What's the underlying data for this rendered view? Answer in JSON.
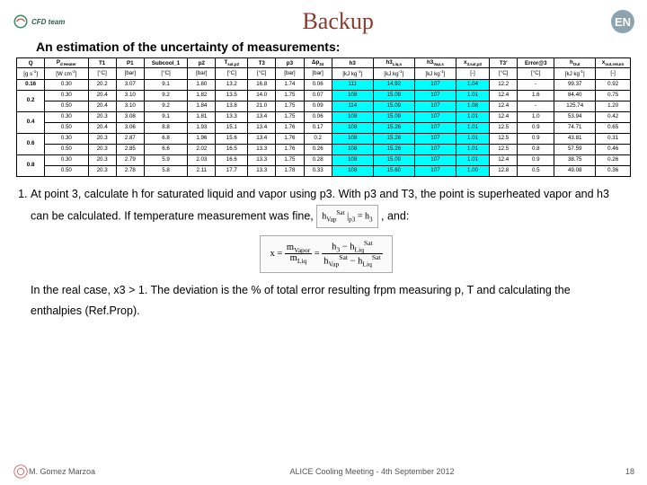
{
  "header": {
    "logo_text": "CFD team",
    "title": "Backup",
    "right_badge": "EN"
  },
  "subtitle": "An estimation of the uncertainty of measurements:",
  "table": {
    "head1": [
      "Q",
      "P<sub>d Heater</sub>",
      "T1",
      "P1",
      "Subcool_1",
      "p2",
      "T<sub>sat,p2</sub>",
      "T3",
      "p3",
      "Δp<sub>34</sub>",
      "h3",
      "h3<sub>Liq,s</sub>",
      "h3<sub>Vap,s</sub>",
      "x<sub>3,sat,p3</sub>",
      "T3'",
      "Error@3",
      "h<sub>Out</sub>",
      "x<sub>out,return</sub>"
    ],
    "head2": [
      "[g s<sup>-1</sup>]",
      "[W cm<sup>-2</sup>]",
      "[°C]",
      "[bar]",
      "[°C]",
      "[bar]",
      "[°C]",
      "[°C]",
      "[bar]",
      "[bar]",
      "[kJ kg<sup>-1</sup>]",
      "[kJ kg<sup>-1</sup>]",
      "[kJ kg<sup>-1</sup>]",
      "[-]",
      "[°C]",
      "[°C]",
      "[kJ kg<sup>-1</sup>]",
      "[-]"
    ],
    "left_groups": [
      "0.16",
      "0.2",
      "0.4",
      "0.6",
      "0.8"
    ],
    "rows": [
      [
        "0.30",
        "20.2",
        "3.07",
        "9.1",
        "1.80",
        "13.2",
        "16.8",
        "1.74",
        "0.06",
        "111",
        "14.92",
        "107",
        "1.04",
        "12.2",
        "-",
        "99.37",
        "0.92"
      ],
      [
        "0.30",
        "20.4",
        "3.10",
        "9.2",
        "1.82",
        "13.5",
        "14.0",
        "1.75",
        "0.07",
        "108",
        "15.09",
        "107",
        "1.01",
        "12.4",
        "1.6",
        "84.40",
        "0.75"
      ],
      [
        "0.50",
        "20.4",
        "3.10",
        "9.2",
        "1.84",
        "13.8",
        "21.0",
        "1.75",
        "0.09",
        "114",
        "15.09",
        "107",
        "1.08",
        "12.4",
        "-",
        "125.74",
        "1.20"
      ],
      [
        "0.30",
        "20.3",
        "3.08",
        "9.1",
        "1.81",
        "13.3",
        "13.4",
        "1.75",
        "0.06",
        "108",
        "15.09",
        "107",
        "1.01",
        "12.4",
        "1.0",
        "53.94",
        "0.42"
      ],
      [
        "0.50",
        "20.4",
        "3.06",
        "8.8",
        "1.93",
        "15.1",
        "13.4",
        "1.76",
        "0.17",
        "108",
        "15.26",
        "107",
        "1.01",
        "12.5",
        "0.9",
        "74.71",
        "0.65"
      ],
      [
        "0.30",
        "20.3",
        "2.87",
        "6.8",
        "1.96",
        "15.6",
        "13.4",
        "1.76",
        "0.2",
        "108",
        "15.26",
        "107",
        "1.01",
        "12.5",
        "0.9",
        "43.81",
        "0.31"
      ],
      [
        "0.50",
        "20.3",
        "2.85",
        "6.6",
        "2.02",
        "16.5",
        "13.3",
        "1.76",
        "0.26",
        "108",
        "15.26",
        "107",
        "1.01",
        "12.5",
        "0.8",
        "57.59",
        "0.46"
      ],
      [
        "0.30",
        "20.3",
        "2.79",
        "5.9",
        "2.03",
        "16.6",
        "13.3",
        "1.75",
        "0.28",
        "108",
        "15.09",
        "107",
        "1.01",
        "12.4",
        "0.9",
        "38.75",
        "0.26"
      ],
      [
        "0.50",
        "20.3",
        "2.78",
        "5.8",
        "2.11",
        "17.7",
        "13.3",
        "1.78",
        "0.33",
        "108",
        "15.60",
        "107",
        "1.00",
        "12.8",
        "0.5",
        "49.08",
        "0.36"
      ]
    ],
    "hl_cols": [
      10,
      11,
      12,
      13
    ],
    "first_row_span": 1,
    "colors": {
      "border": "#000000",
      "highlight": "#00ffff",
      "bg": "#ffffff"
    }
  },
  "body": {
    "li1_a": "At point 3, calculate h for saturated liquid and vapor using p3. With p3 and T3, the point is superheated vapor and h3 can be calculated. If temperature measurement was fine, ",
    "li1_b": " , and:",
    "eq1_html": "h<sub>Vap</sub><sup>Sat</sup>&nbsp;|<sub>p3</sub>&nbsp;=&nbsp;h<sub>3</sub>",
    "eq2_html": "x&nbsp;=&nbsp;<span class='frac'><span class='n'>m<sub>Vapor</sub></span><span class='d'>m<sub>Liq</sub></span></span>&nbsp;=&nbsp;<span class='frac'><span class='n'>h<sub>3</sub>&nbsp;&minus;&nbsp;h<sub>Liq</sub><sup>Sat</sup></span><span class='d'>h<sub>Vap</sub><sup>Sat</sup>&nbsp;&minus;&nbsp;h<sub>Liq</sub><sup>Sat</sup></span></span>",
    "para2": "In the real case, x3 > 1. The deviation is the % of total error resulting frpm measuring p, T and calculating the enthalpies (Ref.Prop)."
  },
  "footer": {
    "author": "M. Gomez Marzoa",
    "meeting": "ALICE Cooling Meeting - 4th September 2012",
    "page": "18"
  }
}
